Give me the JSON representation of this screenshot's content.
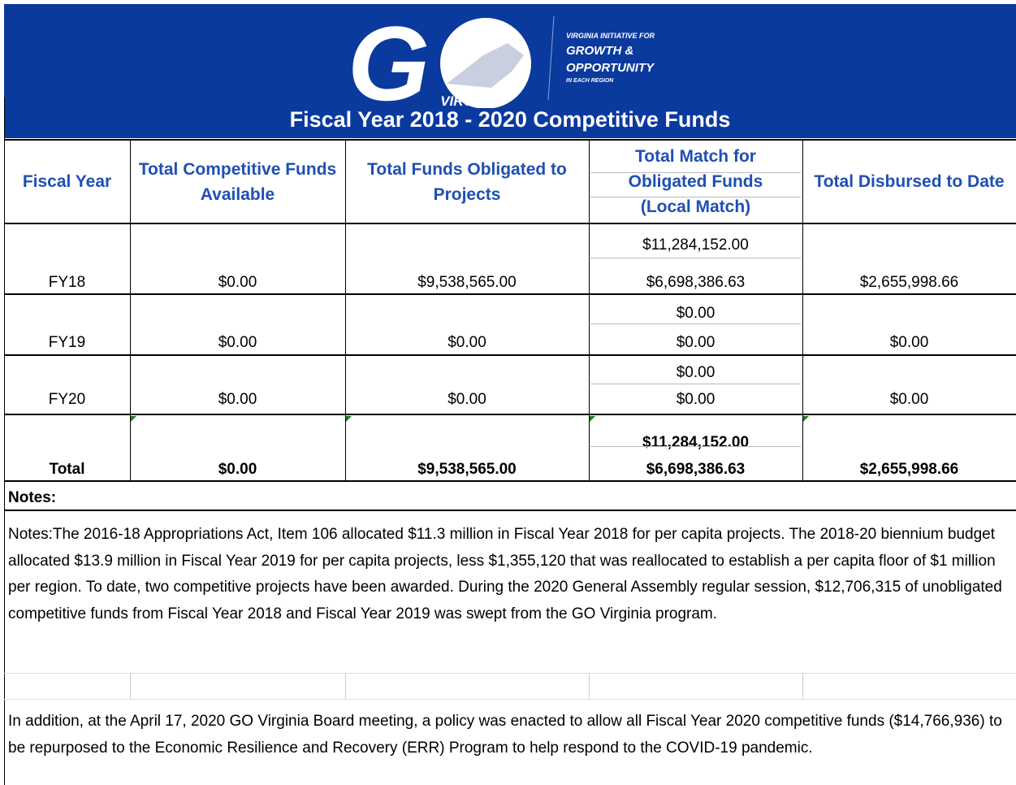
{
  "header": {
    "logo": {
      "mark": "G",
      "name": "VIRGINIA",
      "tagline": [
        "VIRGINIA INITIATIVE FOR",
        "GROWTH &",
        "OPPORTUNITY",
        "IN EACH REGION"
      ]
    },
    "title": "Fiscal Year 2018 - 2020 Competitive Funds"
  },
  "table": {
    "columns": [
      "Fiscal Year",
      "Total Competitive Funds Available",
      "Total Funds Obligated  to Projects",
      "Total Match for Obligated Funds (Local Match)",
      "Total Disbursed to Date"
    ],
    "rows": [
      {
        "year": "FY18",
        "available": "$0.00",
        "obligated": "$9,538,565.00",
        "match": [
          "$11,284,152.00",
          "$6,698,386.63"
        ],
        "disbursed": "$2,655,998.66"
      },
      {
        "year": "FY19",
        "available": "$0.00",
        "obligated": "$0.00",
        "match": [
          "$0.00",
          "$0.00"
        ],
        "disbursed": "$0.00"
      },
      {
        "year": "FY20",
        "available": "$0.00",
        "obligated": "$0.00",
        "match": [
          "$0.00",
          "$0.00"
        ],
        "disbursed": "$0.00"
      }
    ],
    "total": {
      "year": "Total",
      "available": "$0.00",
      "obligated": "$9,538,565.00",
      "match": [
        "$11,284,152.00",
        "$6,698,386.63"
      ],
      "disbursed": "$2,655,998.66"
    }
  },
  "notes": {
    "label": "Notes:",
    "paragraphs": [
      "Notes:The 2016-18 Appropriations Act, Item 106 allocated $11.3 million in Fiscal Year 2018 for per capita projects. The 2018-20 biennium budget allocated $13.9 million in Fiscal Year 2019 for per capita projects, less $1,355,120 that was reallocated to establish a per capita floor of $1 million per region. To date, two competitive projects have been awarded. During the 2020 General Assembly regular session, $12,706,315 of unobligated competitive funds from Fiscal Year 2018 and Fiscal Year 2019 was swept from the GO Virginia program.",
      "In addition, at the April 17, 2020 GO Virginia Board meeting, a policy was enacted to allow all Fiscal Year 2020 competitive funds ($14,766,936) to be repurposed to the Economic Resilience and Recovery (ERR) Program to help respond to the COVID-19 pandemic."
    ]
  }
}
